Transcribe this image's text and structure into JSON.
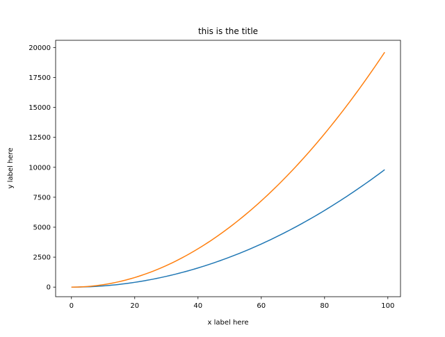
{
  "chart_data": {
    "type": "line",
    "title": "this is the title",
    "xlabel": "x label here",
    "ylabel": "y label here",
    "xlim": [
      -5,
      104
    ],
    "ylim": [
      -800,
      20600
    ],
    "xticks": [
      0,
      20,
      40,
      60,
      80,
      100
    ],
    "yticks": [
      0,
      2500,
      5000,
      7500,
      10000,
      12500,
      15000,
      17500,
      20000
    ],
    "grid": false,
    "legend": "none",
    "x_range": {
      "start": 0,
      "end": 99,
      "step": 1
    },
    "series": [
      {
        "formula": "x^2",
        "color": "#1f77b4",
        "x_start": 0,
        "x_end": 99,
        "y_start": 0,
        "y_end": 9801
      },
      {
        "formula": "2*x^2",
        "color": "#ff7f0e",
        "x_start": 0,
        "x_end": 99,
        "y_start": 0,
        "y_end": 19602
      }
    ]
  }
}
